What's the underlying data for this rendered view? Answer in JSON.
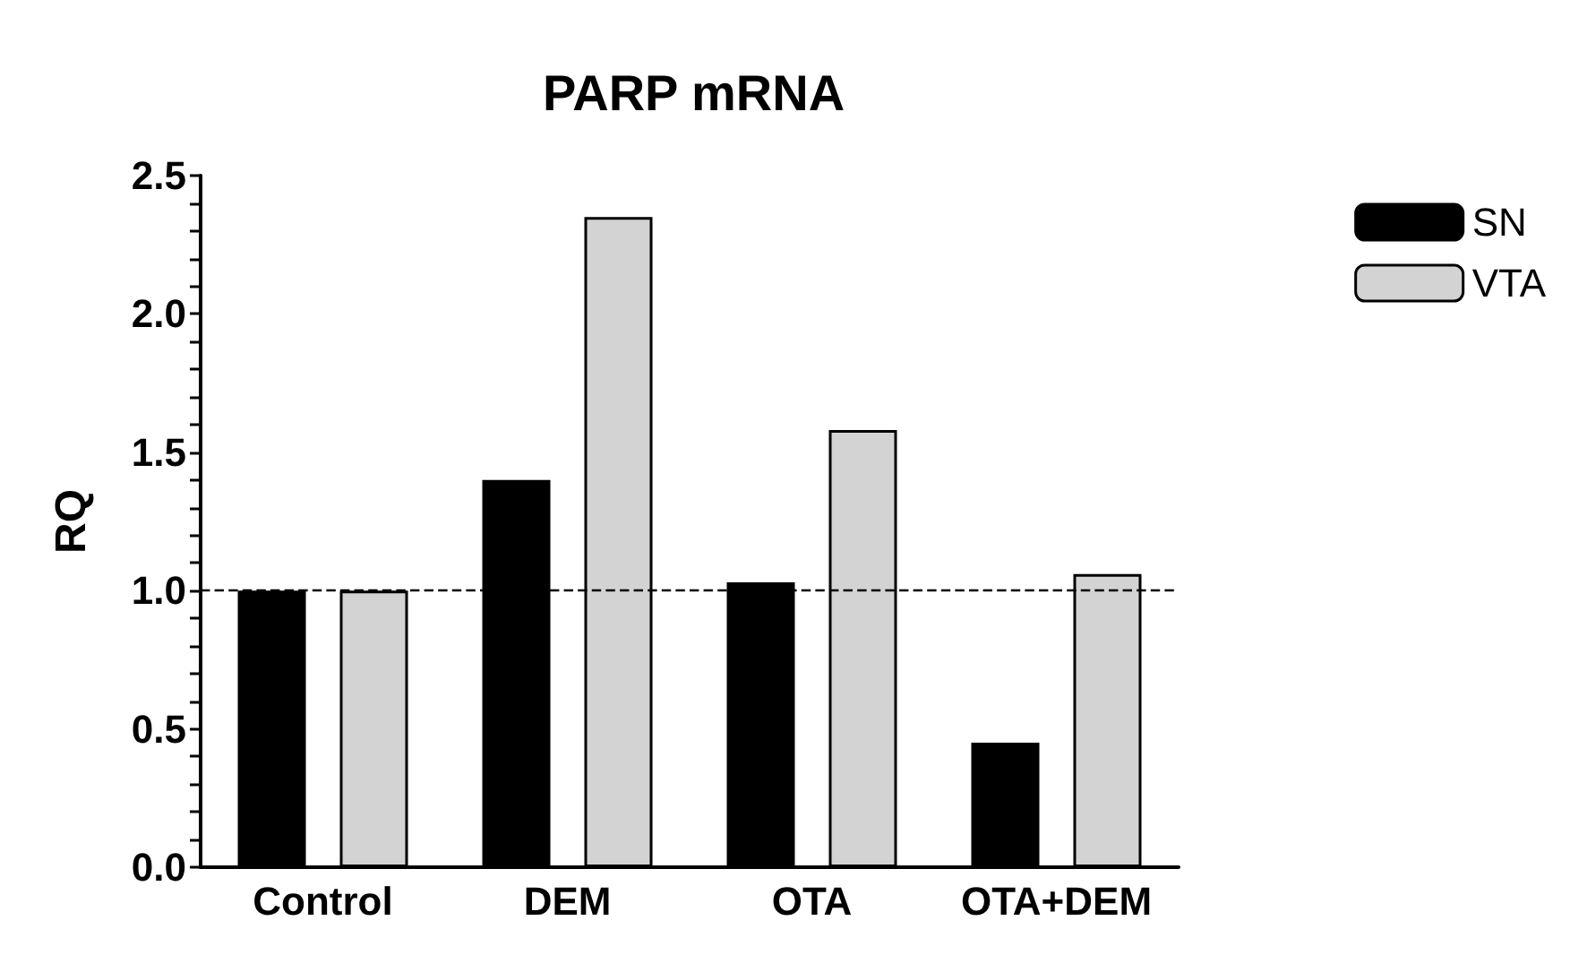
{
  "chart_data": {
    "type": "bar",
    "title": "PARP mRNA",
    "ylabel": "RQ",
    "categories": [
      "Control",
      "DEM",
      "OTA",
      "OTA+DEM"
    ],
    "series": [
      {
        "name": "SN",
        "color": "#000000",
        "values": [
          1.0,
          1.4,
          1.03,
          0.45
        ]
      },
      {
        "name": "VTA",
        "color": "#d3d3d3",
        "values": [
          1.0,
          2.35,
          1.58,
          1.06
        ]
      }
    ],
    "ylim": [
      0,
      2.5
    ],
    "yticks": [
      {
        "value": 0,
        "label": "0.0"
      },
      {
        "value": 0.1,
        "label": null
      },
      {
        "value": 0.2,
        "label": null
      },
      {
        "value": 0.3,
        "label": null
      },
      {
        "value": 0.4,
        "label": null
      },
      0.5,
      {
        "value": 0.6,
        "label": null
      },
      {
        "value": 0.7,
        "label": null
      },
      {
        "value": 0.8,
        "label": null
      },
      {
        "value": 0.9,
        "label": null
      },
      {
        "value": 1,
        "label": "1.0"
      },
      {
        "value": 1.1,
        "label": null
      },
      {
        "value": 1.2,
        "label": null
      },
      {
        "value": 1.3,
        "label": null
      },
      {
        "value": 1.4,
        "label": null
      },
      1.5,
      {
        "value": 1.6,
        "label": null
      },
      {
        "value": 1.7,
        "label": null
      },
      {
        "value": 1.8,
        "label": null
      },
      {
        "value": 1.9,
        "label": null
      },
      {
        "value": 2,
        "label": "2.0"
      },
      {
        "value": 2.1,
        "label": null
      },
      {
        "value": 2.2,
        "label": null
      },
      {
        "value": 2.3,
        "label": null
      },
      {
        "value": 2.4,
        "label": null
      },
      2.5
    ],
    "ref_lines": [
      {
        "axis": "y",
        "value": 1,
        "label": null,
        "line_style": "dashed",
        "color": "#000000"
      }
    ],
    "grid": false,
    "legend": "top right"
  }
}
